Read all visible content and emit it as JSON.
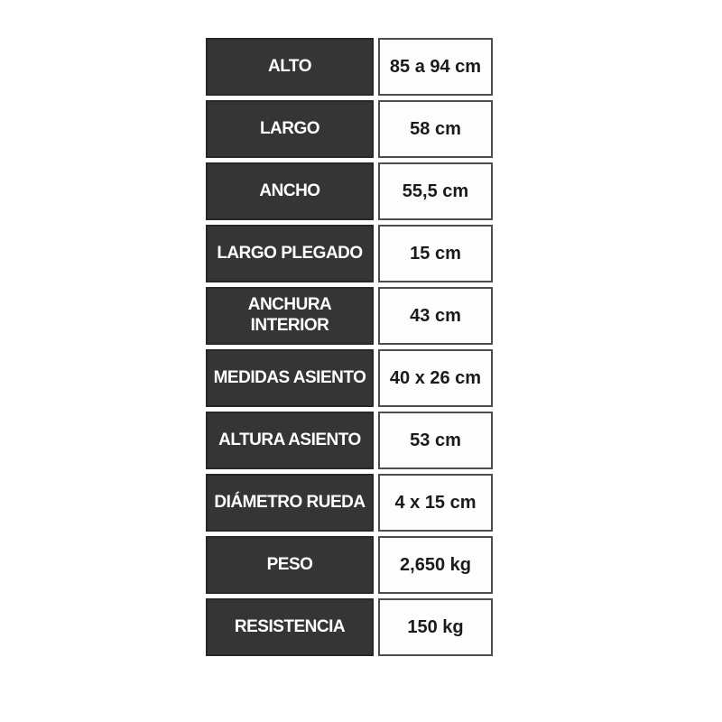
{
  "table": {
    "name": "product-specifications",
    "columns": [
      "attribute",
      "value"
    ],
    "rows": [
      {
        "label": "ALTO",
        "value": "85 a 94 cm"
      },
      {
        "label": "LARGO",
        "value": "58 cm"
      },
      {
        "label": "ANCHO",
        "value": "55,5 cm"
      },
      {
        "label": "LARGO PLEGADO",
        "value": "15 cm"
      },
      {
        "label": "ANCHURA INTERIOR",
        "value": "43 cm"
      },
      {
        "label": "MEDIDAS ASIENTO",
        "value": "40 x 26 cm"
      },
      {
        "label": "ALTURA ASIENTO",
        "value": "53 cm"
      },
      {
        "label": "DIÁMETRO RUEDA",
        "value": "4 x 15 cm"
      },
      {
        "label": "PESO",
        "value": "2,650 kg"
      },
      {
        "label": "RESISTENCIA",
        "value": "150 kg"
      }
    ],
    "colors": {
      "label_cell_background": "#353535",
      "label_cell_border": "#272727",
      "label_text": "#ffffff",
      "value_cell_background": "#fdfdfd",
      "value_cell_border": "#4d4d4d",
      "value_text": "#1a1a1a",
      "page_background": "#ffffff"
    }
  }
}
